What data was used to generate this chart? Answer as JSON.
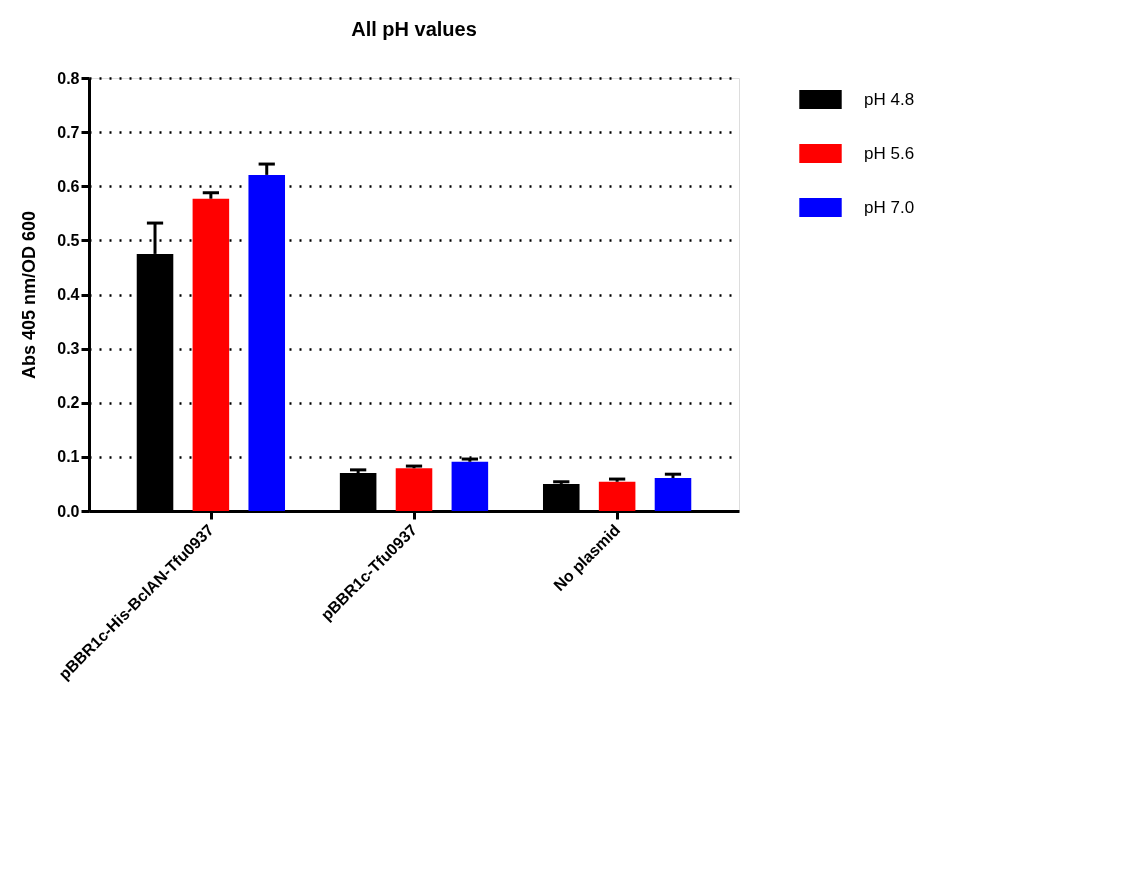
{
  "chart_data": {
    "type": "bar",
    "title": "All pH values",
    "ylabel": "Abs 405 nm/OD 600",
    "categories": [
      "pBBR1c-His-BclAN-Tfu0937",
      "pBBR1c-Tfu0937",
      "No plasmid"
    ],
    "series": [
      {
        "name": "pH 4.8",
        "color": "#000000",
        "values": [
          0.475,
          0.07,
          0.05
        ],
        "errors": [
          [
            0.475,
            0.532
          ],
          [
            0.07,
            0.076
          ],
          [
            0.05,
            0.054
          ]
        ]
      },
      {
        "name": "pH 5.6",
        "color": "#ff0000",
        "values": [
          0.577,
          0.079,
          0.054
        ],
        "errors": [
          [
            0.577,
            0.588
          ],
          [
            0.079,
            0.083
          ],
          [
            0.054,
            0.059
          ]
        ]
      },
      {
        "name": "pH 7.0",
        "color": "#0000ff",
        "values": [
          0.621,
          0.091,
          0.061
        ],
        "errors": [
          [
            0.621,
            0.641
          ],
          [
            0.091,
            0.096
          ],
          [
            0.061,
            0.068
          ]
        ]
      }
    ],
    "ylim": [
      0,
      0.8
    ],
    "yticks": [
      {
        "value": 0,
        "label": "0.0"
      },
      0.1,
      0.2,
      0.3,
      0.4,
      0.5,
      0.6,
      0.7,
      0.8
    ],
    "grid": "y",
    "legend": "top right"
  }
}
